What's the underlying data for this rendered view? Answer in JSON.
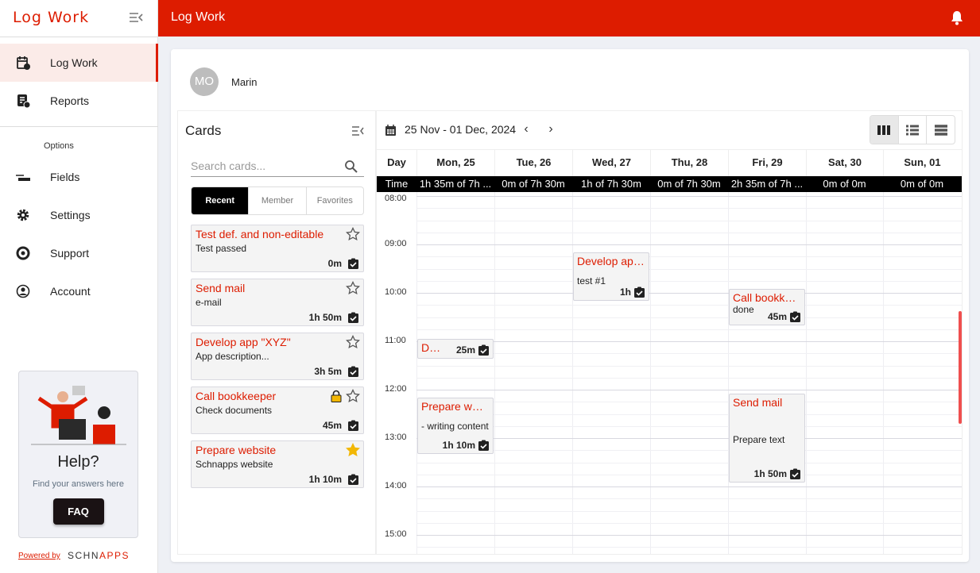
{
  "app": {
    "logo": "Log Work",
    "title": "Log Work",
    "accent": "#dd1c00"
  },
  "sidebar": {
    "items": [
      {
        "label": "Log Work",
        "icon": "calendar-clock-icon",
        "active": true
      },
      {
        "label": "Reports",
        "icon": "report-clock-icon"
      }
    ],
    "options_label": "Options",
    "options": [
      {
        "label": "Fields",
        "icon": "fields-icon"
      },
      {
        "label": "Settings",
        "icon": "gear-icon"
      },
      {
        "label": "Support",
        "icon": "lifebuoy-icon"
      },
      {
        "label": "Account",
        "icon": "account-icon"
      }
    ],
    "help": {
      "title": "Help?",
      "text": "Find your answers here",
      "button": "FAQ"
    },
    "powered": "Powered by",
    "brand_a": "SCHN",
    "brand_b": "APPS"
  },
  "user": {
    "initials": "MO",
    "name": "Marin"
  },
  "cards": {
    "title": "Cards",
    "search_placeholder": "Search cards...",
    "tabs": [
      "Recent",
      "Member",
      "Favorites"
    ],
    "items": [
      {
        "title": "Test def. and non-editable",
        "desc": "Test passed",
        "time": "0m",
        "fav": false,
        "locked": false
      },
      {
        "title": "Send mail",
        "desc": "e-mail",
        "time": "1h 50m",
        "fav": false,
        "locked": false
      },
      {
        "title": "Develop app \"XYZ\"",
        "desc": "App description...",
        "time": "3h 5m",
        "fav": false,
        "locked": false
      },
      {
        "title": "Call bookkeeper",
        "desc": "Check documents",
        "time": "45m",
        "fav": false,
        "locked": true
      },
      {
        "title": "Prepare website",
        "desc": "Schnapps website",
        "time": "1h 10m",
        "fav": true,
        "locked": false
      }
    ]
  },
  "calendar": {
    "range": "25 Nov - 01 Dec, 2024",
    "day_label": "Day",
    "time_label": "Time",
    "days": [
      {
        "label": "Mon, 25",
        "time": "1h 35m of 7h ..."
      },
      {
        "label": "Tue, 26",
        "time": "0m of 7h 30m"
      },
      {
        "label": "Wed, 27",
        "time": "1h of 7h 30m"
      },
      {
        "label": "Thu, 28",
        "time": "0m of 7h 30m"
      },
      {
        "label": "Fri, 29",
        "time": "2h 35m of 7h ..."
      },
      {
        "label": "Sat, 30",
        "time": "0m of 0m"
      },
      {
        "label": "Sun, 01",
        "time": "0m of 0m"
      }
    ],
    "hours": [
      "08:00",
      "09:00",
      "10:00",
      "11:00",
      "12:00",
      "13:00",
      "14:00",
      "15:00"
    ],
    "events": [
      {
        "day": 0,
        "start": "10:57",
        "minutes": 25,
        "title": "Develop app \"XYZ\"",
        "desc": "",
        "time": "25m"
      },
      {
        "day": 0,
        "start": "12:10",
        "minutes": 70,
        "title": "Prepare website",
        "desc": "- writing content",
        "time": "1h 10m"
      },
      {
        "day": 2,
        "start": "09:10",
        "minutes": 60,
        "title": "Develop app \"XYZ\"",
        "desc": "test #1",
        "time": "1h"
      },
      {
        "day": 4,
        "start": "09:55",
        "minutes": 45,
        "title": "Call bookkeeper",
        "desc": "done",
        "time": "45m"
      },
      {
        "day": 4,
        "start": "12:05",
        "minutes": 110,
        "title": "Send mail",
        "desc": "Prepare text",
        "time": "1h 50m"
      }
    ]
  }
}
